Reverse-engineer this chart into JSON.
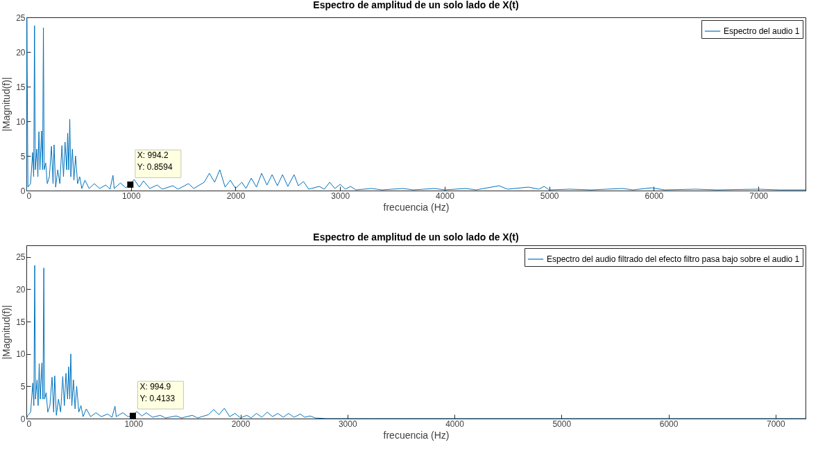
{
  "chart_data": [
    {
      "type": "line",
      "title": "Espectro de amplitud de un solo lado de X(t)",
      "xlabel": "frecuencia (Hz)",
      "ylabel": "|Magnitud(f)|",
      "xlim": [
        0,
        7450
      ],
      "ylim": [
        0,
        25
      ],
      "xticks": [
        0,
        1000,
        2000,
        3000,
        4000,
        5000,
        6000,
        7000
      ],
      "yticks": [
        0,
        5,
        10,
        15,
        20,
        25
      ],
      "legend": "top right",
      "x": [
        0,
        5,
        15,
        40,
        60,
        70,
        78,
        85,
        100,
        110,
        120,
        130,
        145,
        155,
        163,
        170,
        185,
        200,
        220,
        240,
        255,
        265,
        280,
        300,
        320,
        340,
        355,
        370,
        385,
        395,
        405,
        415,
        425,
        440,
        455,
        470,
        490,
        510,
        530,
        560,
        600,
        650,
        700,
        760,
        800,
        828,
        840,
        900,
        950,
        994.2,
        1030,
        1080,
        1120,
        1180,
        1250,
        1300,
        1400,
        1450,
        1550,
        1600,
        1700,
        1750,
        1800,
        1850,
        1900,
        1950,
        2000,
        2060,
        2100,
        2150,
        2200,
        2250,
        2300,
        2350,
        2400,
        2450,
        2500,
        2560,
        2600,
        2650,
        2700,
        2800,
        2850,
        2900,
        2950,
        3000,
        3050,
        3100,
        3150,
        3300,
        3400,
        3600,
        3700,
        3900,
        4000,
        4200,
        4300,
        4520,
        4600,
        4800,
        4900,
        4950,
        5000,
        5200,
        5400,
        5700,
        5800,
        5980,
        6100,
        6400,
        6600,
        7000,
        7200,
        7450
      ],
      "series": [
        {
          "name": "Espectro del audio 1",
          "color": "#0072bd",
          "values": [
            0,
            25,
            0.5,
            1,
            5.5,
            2,
            23.8,
            3,
            6,
            2,
            8.5,
            3,
            8.6,
            3,
            23.5,
            3,
            4,
            1,
            2,
            6.4,
            1,
            6.6,
            0.5,
            3,
            1,
            6.5,
            2,
            7,
            3,
            8.3,
            3,
            10.3,
            2,
            6,
            1.5,
            5,
            1,
            2,
            0.3,
            1.5,
            0.3,
            1,
            0.3,
            0.8,
            0.2,
            2.2,
            0.3,
            1.1,
            0.4,
            0.9,
            1.6,
            0.5,
            1.4,
            0.3,
            0.8,
            0.2,
            0.7,
            0.2,
            1,
            0.3,
            1.2,
            2.5,
            1.2,
            3,
            0.5,
            1.5,
            0.3,
            1.2,
            0.3,
            1.8,
            0.5,
            2.5,
            0.8,
            2.3,
            0.7,
            2.3,
            0.6,
            2.3,
            0.7,
            1.3,
            0.2,
            0.6,
            0.2,
            1.2,
            0.3,
            0.9,
            0.2,
            0.6,
            0.1,
            0.3,
            0.1,
            0.3,
            0.1,
            0.3,
            0.1,
            0.3,
            0.1,
            0.7,
            0.2,
            0.5,
            0.2,
            0.6,
            0.1,
            0.2,
            0.1,
            0.3,
            0.1,
            0.4,
            0.1,
            0.2,
            0.1,
            0.2,
            0.1,
            0.1
          ]
        }
      ],
      "annotations": [
        {
          "text": "X: 994.2\nY: 0.8594",
          "x": 994.2,
          "y": 0.8594
        }
      ]
    },
    {
      "type": "line",
      "title": "Espectro de amplitud de un solo lado de X(t)",
      "xlabel": "frecuencia (Hz)",
      "ylabel": "|Magnitud(f)|",
      "xlim": [
        0,
        7280
      ],
      "ylim": [
        0,
        26.8
      ],
      "xticks": [
        0,
        1000,
        2000,
        3000,
        4000,
        5000,
        6000,
        7000
      ],
      "yticks": [
        0,
        5,
        10,
        15,
        20,
        25
      ],
      "legend": "top right",
      "x": [
        0,
        15,
        40,
        60,
        70,
        78,
        85,
        100,
        110,
        120,
        130,
        145,
        155,
        163,
        170,
        185,
        200,
        220,
        240,
        255,
        265,
        280,
        300,
        320,
        340,
        355,
        370,
        385,
        395,
        405,
        415,
        425,
        440,
        455,
        470,
        490,
        510,
        530,
        560,
        600,
        650,
        700,
        760,
        800,
        828,
        840,
        900,
        950,
        994.9,
        1030,
        1080,
        1120,
        1180,
        1250,
        1300,
        1400,
        1450,
        1550,
        1600,
        1700,
        1750,
        1800,
        1850,
        1900,
        1950,
        2000,
        2060,
        2100,
        2150,
        2200,
        2250,
        2300,
        2350,
        2400,
        2450,
        2500,
        2560,
        2600,
        2650,
        2700,
        2800,
        3000,
        3200,
        3500,
        4000,
        5000,
        6000,
        7000,
        7280
      ],
      "series": [
        {
          "name": "Espectro del audio filtrado del efecto filtro pasa bajo sobre el audio 1",
          "color": "#0072bd",
          "values": [
            0,
            0.5,
            1,
            5.5,
            2,
            23.7,
            3,
            6,
            2,
            8.5,
            3,
            8.6,
            3,
            23.3,
            3,
            4,
            1,
            2,
            6.4,
            1,
            6.6,
            0.5,
            3,
            1,
            6.5,
            2,
            7,
            3,
            8,
            3,
            10,
            2,
            6,
            1.5,
            5,
            1,
            2,
            0.3,
            1.5,
            0.3,
            0.9,
            0.3,
            0.7,
            0.2,
            1.9,
            0.3,
            0.9,
            0.3,
            0.4,
            1.1,
            0.4,
            0.9,
            0.2,
            0.5,
            0.1,
            0.4,
            0.1,
            0.5,
            0.1,
            0.6,
            1.4,
            0.6,
            1.6,
            0.3,
            0.8,
            0.1,
            0.5,
            0.1,
            0.8,
            0.2,
            1,
            0.3,
            0.8,
            0.2,
            0.8,
            0.2,
            0.7,
            0.2,
            0.4,
            0.1,
            0,
            0,
            0,
            0,
            0,
            0,
            0,
            0,
            0
          ]
        }
      ],
      "annotations": [
        {
          "text": "X: 994.9\nY: 0.4133",
          "x": 994.9,
          "y": 0.4133
        }
      ]
    }
  ]
}
